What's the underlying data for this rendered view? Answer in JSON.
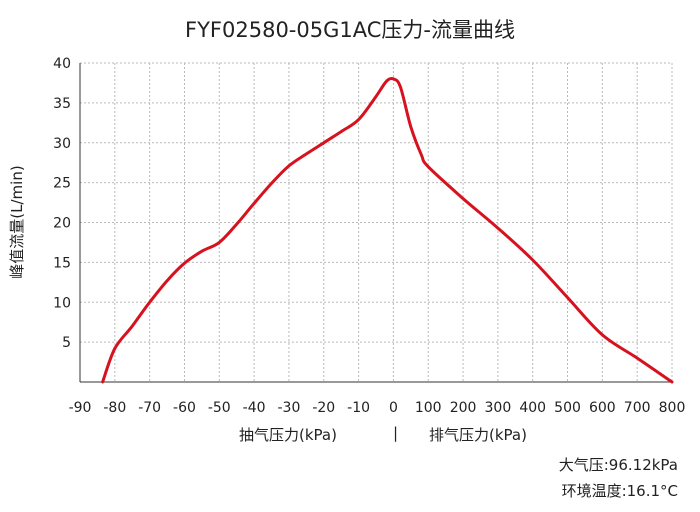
{
  "chart_data": {
    "type": "line",
    "title": "FYF02580-05G1AC压力-流量曲线",
    "ylabel": "峰值流量(L/min)",
    "xlabel_left": "抽气压力(kPa)",
    "xlabel_separator": "|",
    "xlabel_right": "排气压力(kPa)",
    "x_tick_labels": [
      "-90",
      "-80",
      "-70",
      "-60",
      "-50",
      "-40",
      "-30",
      "-20",
      "-10",
      "0",
      "100",
      "200",
      "300",
      "400",
      "500",
      "600",
      "700",
      "800"
    ],
    "y_tick_labels": [
      "5",
      "10",
      "15",
      "20",
      "25",
      "30",
      "35",
      "40"
    ],
    "ylim": [
      0,
      40
    ],
    "grid": true,
    "line_color": "#d7121f",
    "series": [
      {
        "points": [
          {
            "x": -83.5,
            "y": 0
          },
          {
            "x": -80,
            "y": 4.2
          },
          {
            "x": -75,
            "y": 7
          },
          {
            "x": -70,
            "y": 10
          },
          {
            "x": -65,
            "y": 12.7
          },
          {
            "x": -60,
            "y": 14.9
          },
          {
            "x": -55,
            "y": 16.4
          },
          {
            "x": -50,
            "y": 17.5
          },
          {
            "x": -45,
            "y": 19.8
          },
          {
            "x": -40,
            "y": 22.4
          },
          {
            "x": -35,
            "y": 24.9
          },
          {
            "x": -30,
            "y": 27.1
          },
          {
            "x": -25,
            "y": 28.6
          },
          {
            "x": -20,
            "y": 30.0
          },
          {
            "x": -15,
            "y": 31.4
          },
          {
            "x": -10,
            "y": 32.9
          },
          {
            "x": -5,
            "y": 35.8
          },
          {
            "x": -2,
            "y": 37.7
          },
          {
            "x": 0,
            "y": 38
          },
          {
            "x": 20,
            "y": 37
          },
          {
            "x": 50,
            "y": 32
          },
          {
            "x": 80,
            "y": 28.5
          },
          {
            "x": 100,
            "y": 27.0
          },
          {
            "x": 200,
            "y": 23.0
          },
          {
            "x": 300,
            "y": 19.3
          },
          {
            "x": 400,
            "y": 15.3
          },
          {
            "x": 500,
            "y": 10.6
          },
          {
            "x": 600,
            "y": 5.9
          },
          {
            "x": 700,
            "y": 3.0
          },
          {
            "x": 800,
            "y": 0
          }
        ]
      }
    ]
  },
  "notes": {
    "atmospheric_pressure": "大气压:96.12kPa",
    "ambient_temperature": "环境温度:16.1°C"
  }
}
